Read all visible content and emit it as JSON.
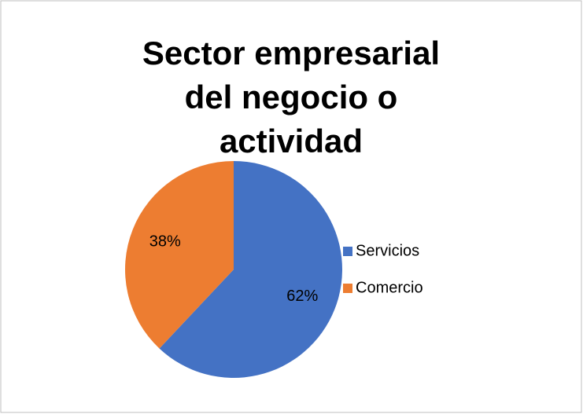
{
  "chart_data": {
    "type": "pie",
    "title": "Sector empresarial del negocio o actividad",
    "categories": [
      "Servicios",
      "Comercio"
    ],
    "values": [
      62,
      38
    ],
    "value_labels": [
      "62%",
      "38%"
    ],
    "colors": [
      "#4472c4",
      "#ed7d31"
    ],
    "legend": "right"
  }
}
